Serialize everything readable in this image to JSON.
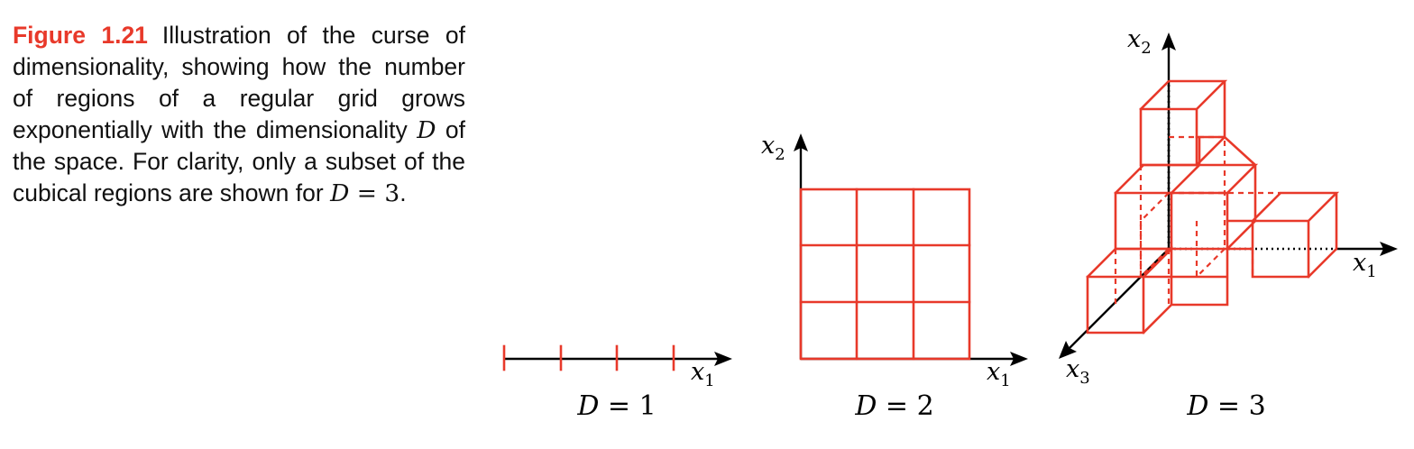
{
  "caption": {
    "figure_label": "Figure 1.21",
    "text_before": "Illustration of the curse of dimensionality, showing how the number of regions of a regular grid grows exponentially with the dimensionality",
    "var_D": "D",
    "text_mid": "of the space. For clarity, only a subset of the cubical regions are shown for",
    "eq_D": "D",
    "eq_rest": " = 3",
    "end": "."
  },
  "panels": {
    "d1": {
      "x_axis_label": "x",
      "x_axis_sub": "1",
      "dim_label_var": "D",
      "dim_label_rest": " = 1"
    },
    "d2": {
      "x_axis_label": "x",
      "x_axis_sub": "1",
      "y_axis_label": "x",
      "y_axis_sub": "2",
      "dim_label_var": "D",
      "dim_label_rest": " = 2"
    },
    "d3": {
      "x1_label": "x",
      "x1_sub": "1",
      "x2_label": "x",
      "x2_sub": "2",
      "x3_label": "x",
      "x3_sub": "3",
      "dim_label_var": "D",
      "dim_label_rest": " = 3"
    }
  },
  "colors": {
    "accent": "#e8392a",
    "axis": "#000000",
    "text": "#111111"
  }
}
